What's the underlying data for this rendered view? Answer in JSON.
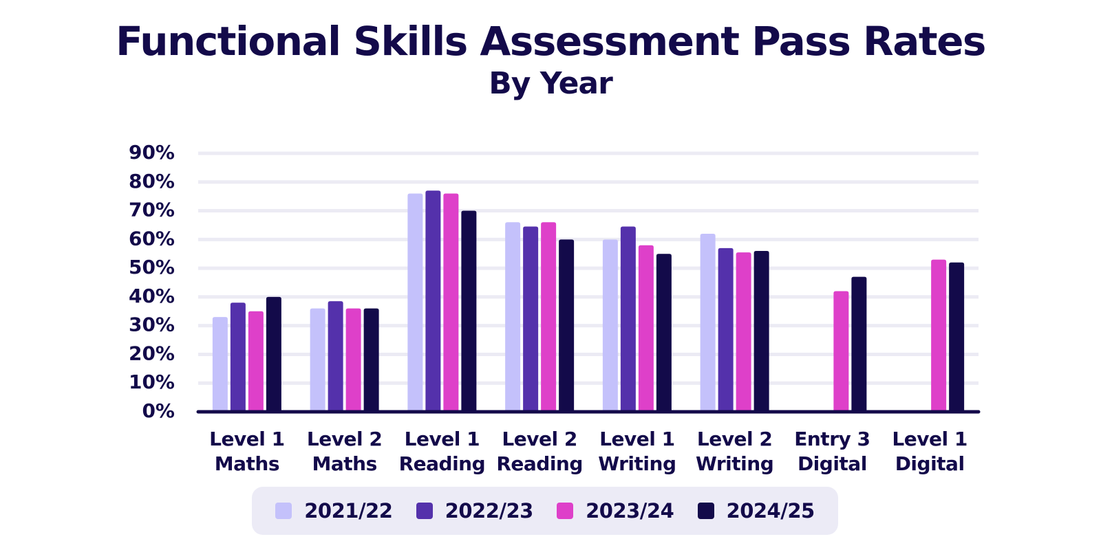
{
  "chart_data": {
    "type": "bar",
    "title": "Functional Skills Assessment Pass Rates",
    "subtitle": "By Year",
    "categories": [
      [
        "Level 1",
        "Maths"
      ],
      [
        "Level 2",
        "Maths"
      ],
      [
        "Level 1",
        "Reading"
      ],
      [
        "Level 2",
        "Reading"
      ],
      [
        "Level 1",
        "Writing"
      ],
      [
        "Level 2",
        "Writing"
      ],
      [
        "Entry 3",
        "Digital"
      ],
      [
        "Level 1",
        "Digital"
      ]
    ],
    "series": [
      {
        "name": "2021/22",
        "color": "#c4c1fb",
        "values": [
          33,
          36,
          76,
          66,
          60,
          62,
          null,
          null
        ]
      },
      {
        "name": "2022/23",
        "color": "#5431ab",
        "values": [
          38,
          38.5,
          77,
          64.5,
          64.5,
          57,
          null,
          null
        ]
      },
      {
        "name": "2023/24",
        "color": "#de40c9",
        "values": [
          35,
          36,
          76,
          66,
          58,
          55.5,
          42,
          53
        ]
      },
      {
        "name": "2024/25",
        "color": "#130a4a",
        "values": [
          40,
          36,
          70,
          60,
          55,
          56,
          47,
          52
        ]
      }
    ],
    "ylim": [
      0,
      90
    ],
    "yticks": [
      0,
      10,
      20,
      30,
      40,
      50,
      60,
      70,
      80,
      90
    ],
    "ytick_labels": [
      "0%",
      "10%",
      "20%",
      "30%",
      "40%",
      "50%",
      "60%",
      "70%",
      "80%",
      "90%"
    ],
    "grid": true,
    "legend_position": "bottom-center"
  }
}
